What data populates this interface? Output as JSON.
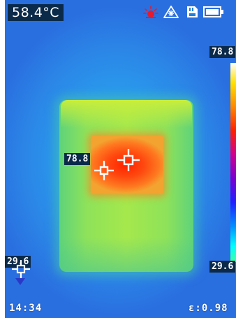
{
  "status": {
    "center_temperature": "58.4°C",
    "icons": [
      "laser-icon",
      "auto-exposure-icon",
      "sd-card-icon",
      "battery-icon"
    ]
  },
  "palette": {
    "max_temperature": "78.8",
    "min_temperature": "29.6"
  },
  "markers": {
    "hot_spot_temperature": "78.8",
    "cold_spot_temperature": "29.6"
  },
  "footer": {
    "time": "14:34",
    "emissivity": "ε:0.98"
  },
  "colors": {
    "label_background": "#0b2a4a",
    "laser": "#e8192c",
    "icon": "#ffffff"
  }
}
